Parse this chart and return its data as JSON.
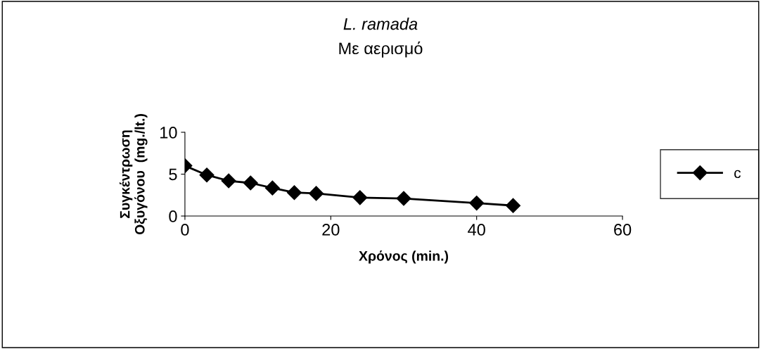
{
  "chart_data": {
    "type": "line",
    "title": "L. ramada",
    "subtitle": "Με αερισμό",
    "xlabel": "Χρόνος (min.)",
    "ylabel": "Συγκέντρωση\nΟξυγόνου  (mg./lt.)",
    "x": [
      0,
      3,
      6,
      9,
      12,
      15,
      18,
      24,
      30,
      40,
      45
    ],
    "series": [
      {
        "name": "c",
        "color": "#000000",
        "values": [
          6.0,
          4.9,
          4.2,
          3.95,
          3.35,
          2.8,
          2.7,
          2.2,
          2.1,
          1.55,
          1.25
        ]
      }
    ],
    "xlim": [
      0,
      60
    ],
    "xticks": [
      0,
      20,
      40,
      60
    ],
    "ylim": [
      0,
      10
    ],
    "yticks": [
      0,
      5,
      10
    ],
    "grid": false,
    "legend": "right",
    "marker": "diamond",
    "line_style": "solid"
  }
}
